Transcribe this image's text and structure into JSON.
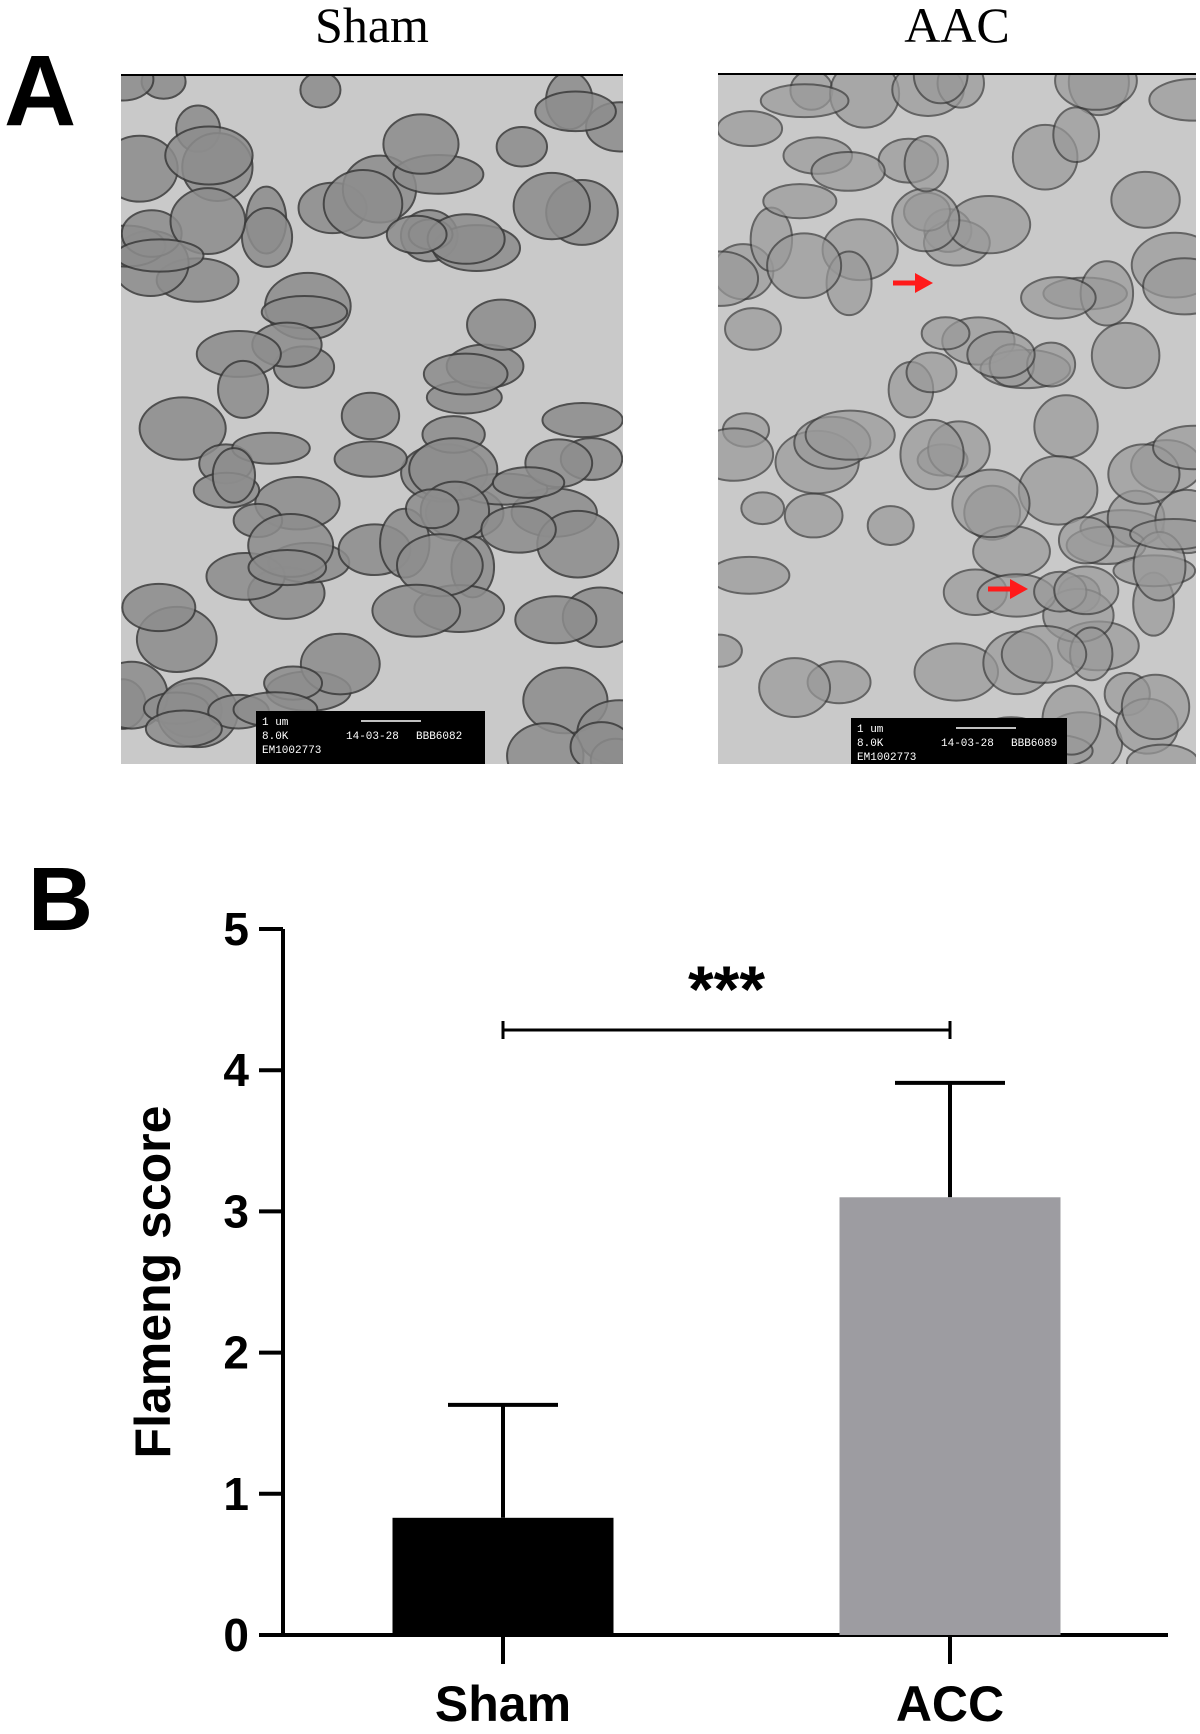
{
  "panel_a": {
    "label": "A",
    "images": [
      {
        "title": "Sham",
        "scale_bar": [
          "1 um",
          "8.0K",
          "14-03-28",
          "BBB6082",
          "EM1002773"
        ]
      },
      {
        "title": "AAC",
        "scale_bar": [
          "1 um",
          "8.0K",
          "14-03-28",
          "BBB6089",
          "EM1002773"
        ]
      }
    ]
  },
  "panel_b": {
    "label": "B"
  },
  "chart_data": {
    "type": "bar",
    "y_label": "Flameng score",
    "categories": [
      "Sham",
      "ACC"
    ],
    "values": [
      0.83,
      3.1
    ],
    "errors": [
      0.8,
      0.81
    ],
    "colors": [
      "#000000",
      "#9d9ca1"
    ],
    "ylim": [
      0,
      5
    ],
    "yticks": [
      0,
      1,
      2,
      3,
      4,
      5
    ],
    "significance": {
      "label": "***",
      "between": [
        0,
        1
      ]
    }
  }
}
